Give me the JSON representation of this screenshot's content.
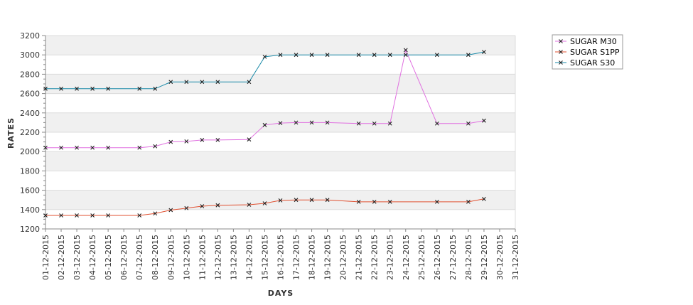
{
  "chart_data": {
    "type": "line",
    "xlabel": "DAYS",
    "ylabel": "RATES",
    "ylim": [
      1200,
      3200
    ],
    "yticks": [
      1200,
      1400,
      1600,
      1800,
      2000,
      2200,
      2400,
      2600,
      2800,
      3000,
      3200
    ],
    "categories": [
      "01-12-2015",
      "02-12-2015",
      "03-12-2015",
      "04-12-2015",
      "05-12-2015",
      "06-12-2015",
      "07-12-2015",
      "08-12-2015",
      "09-12-2015",
      "10-12-2015",
      "11-12-2015",
      "12-12-2015",
      "13-12-2015",
      "14-12-2015",
      "15-12-2015",
      "16-12-2015",
      "17-12-2015",
      "18-12-2015",
      "19-12-2015",
      "20-12-2015",
      "21-12-2015",
      "22-12-2015",
      "23-12-2015",
      "24-12-2015",
      "25-12-2015",
      "26-12-2015",
      "27-12-2015",
      "28-12-2015",
      "29-12-2015",
      "30-12-2015",
      "31-12-2015"
    ],
    "grid": "alternating horizontal bands",
    "legend_position": "top-right",
    "series": [
      {
        "name": "SUGAR M30",
        "color": "#e070e0",
        "points": [
          [
            "01-12-2015",
            2040
          ],
          [
            "02-12-2015",
            2040
          ],
          [
            "03-12-2015",
            2040
          ],
          [
            "04-12-2015",
            2040
          ],
          [
            "05-12-2015",
            2040
          ],
          [
            "07-12-2015",
            2040
          ],
          [
            "08-12-2015",
            2055
          ],
          [
            "09-12-2015",
            2100
          ],
          [
            "10-12-2015",
            2105
          ],
          [
            "11-12-2015",
            2120
          ],
          [
            "12-12-2015",
            2120
          ],
          [
            "14-12-2015",
            2125
          ],
          [
            "15-12-2015",
            2275
          ],
          [
            "16-12-2015",
            2295
          ],
          [
            "17-12-2015",
            2300
          ],
          [
            "18-12-2015",
            2300
          ],
          [
            "19-12-2015",
            2300
          ],
          [
            "21-12-2015",
            2290
          ],
          [
            "22-12-2015",
            2290
          ],
          [
            "23-12-2015",
            2290
          ],
          [
            "24-12-2015",
            3050
          ],
          [
            "26-12-2015",
            2290
          ],
          [
            "28-12-2015",
            2290
          ],
          [
            "29-12-2015",
            2320
          ]
        ]
      },
      {
        "name": "SUGAR S1PP",
        "color": "#e05030",
        "points": [
          [
            "01-12-2015",
            1340
          ],
          [
            "02-12-2015",
            1340
          ],
          [
            "03-12-2015",
            1340
          ],
          [
            "04-12-2015",
            1340
          ],
          [
            "05-12-2015",
            1340
          ],
          [
            "07-12-2015",
            1340
          ],
          [
            "08-12-2015",
            1360
          ],
          [
            "09-12-2015",
            1395
          ],
          [
            "10-12-2015",
            1415
          ],
          [
            "11-12-2015",
            1435
          ],
          [
            "12-12-2015",
            1445
          ],
          [
            "14-12-2015",
            1450
          ],
          [
            "15-12-2015",
            1465
          ],
          [
            "16-12-2015",
            1495
          ],
          [
            "17-12-2015",
            1500
          ],
          [
            "18-12-2015",
            1500
          ],
          [
            "19-12-2015",
            1500
          ],
          [
            "21-12-2015",
            1480
          ],
          [
            "22-12-2015",
            1480
          ],
          [
            "23-12-2015",
            1480
          ],
          [
            "26-12-2015",
            1480
          ],
          [
            "28-12-2015",
            1480
          ],
          [
            "29-12-2015",
            1510
          ]
        ]
      },
      {
        "name": "SUGAR S30",
        "color": "#1a8aa8",
        "points": [
          [
            "01-12-2015",
            2650
          ],
          [
            "02-12-2015",
            2650
          ],
          [
            "03-12-2015",
            2650
          ],
          [
            "04-12-2015",
            2650
          ],
          [
            "05-12-2015",
            2650
          ],
          [
            "07-12-2015",
            2650
          ],
          [
            "08-12-2015",
            2650
          ],
          [
            "09-12-2015",
            2720
          ],
          [
            "10-12-2015",
            2720
          ],
          [
            "11-12-2015",
            2720
          ],
          [
            "12-12-2015",
            2720
          ],
          [
            "14-12-2015",
            2720
          ],
          [
            "15-12-2015",
            2980
          ],
          [
            "16-12-2015",
            3000
          ],
          [
            "17-12-2015",
            3000
          ],
          [
            "18-12-2015",
            3000
          ],
          [
            "19-12-2015",
            3000
          ],
          [
            "21-12-2015",
            3000
          ],
          [
            "22-12-2015",
            3000
          ],
          [
            "23-12-2015",
            3000
          ],
          [
            "24-12-2015",
            3000
          ],
          [
            "26-12-2015",
            3000
          ],
          [
            "28-12-2015",
            3000
          ],
          [
            "29-12-2015",
            3030
          ]
        ]
      }
    ]
  }
}
